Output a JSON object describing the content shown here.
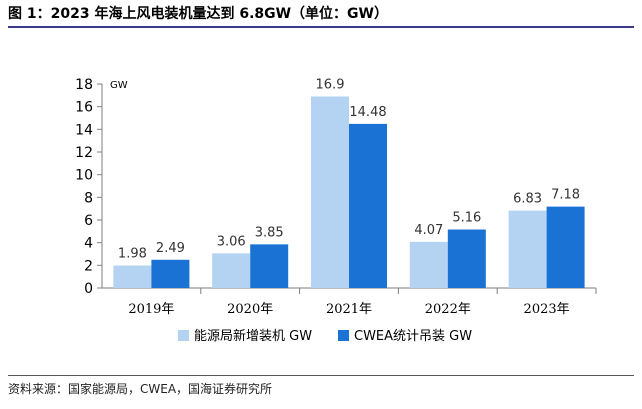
{
  "figure": {
    "title": "图 1：2023 年海上风电装机量达到 6.8GW（单位：GW）",
    "source": "资料来源：国家能源局，CWEA，国海证券研究所"
  },
  "chart_data": {
    "type": "bar",
    "title": "2023 年海上风电装机量达到 6.8GW",
    "unit": "GW",
    "categories": [
      "2019年",
      "2020年",
      "2021年",
      "2022年",
      "2023年"
    ],
    "series": [
      {
        "name": "能源局新增装机 GW",
        "color": "#b4d3f3",
        "values": [
          1.98,
          3.06,
          16.9,
          4.07,
          6.83
        ],
        "labels": [
          "1.98",
          "3.06",
          "16.9",
          "4.07",
          "6.83"
        ]
      },
      {
        "name": "CWEA统计吊装 GW",
        "color": "#1a73d4",
        "values": [
          2.49,
          3.85,
          14.48,
          5.16,
          7.18
        ],
        "labels": [
          "2.49",
          "3.85",
          "14.48",
          "5.16",
          "7.18"
        ]
      }
    ],
    "ylim": [
      0,
      18
    ],
    "yticks": [
      0,
      2,
      4,
      6,
      8,
      10,
      12,
      14,
      16,
      18
    ],
    "ylabel": "GW",
    "xlabel": "",
    "grid": false,
    "legend": "bottom"
  }
}
